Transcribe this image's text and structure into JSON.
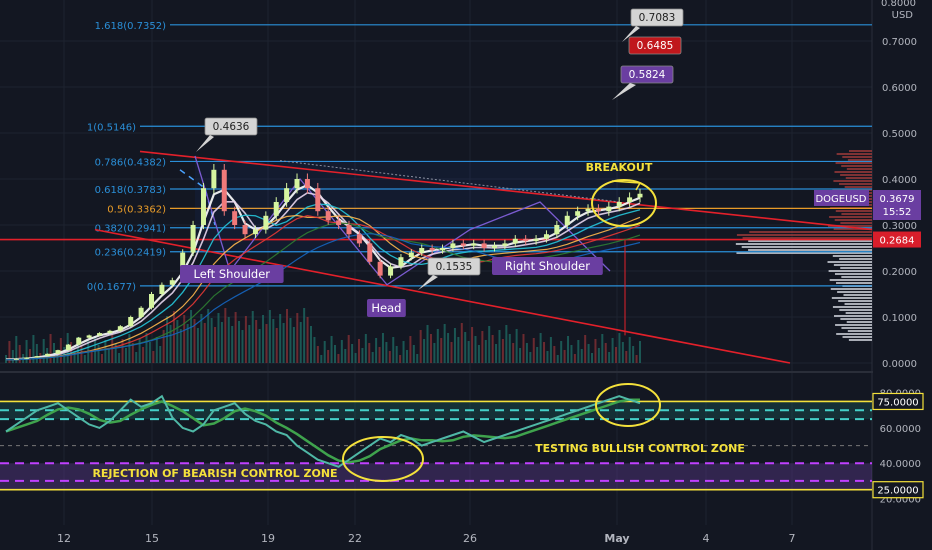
{
  "symbol": "DOGEUSD",
  "currency": "USD",
  "top_tick_partial": "0.8000",
  "price": {
    "label": "DOGEUSD",
    "value": "0.3679",
    "timer": "15:52",
    "line": "0.2684"
  },
  "colors": {
    "bg": "#131722",
    "grid": "#1e2330",
    "fib": "#2a8fd8",
    "fib_orange": "#e89b28",
    "trend": "#e3202a",
    "yellow": "#f4e13b",
    "up": "#26a69a",
    "down": "#ef5350",
    "purple": "#6a3ea1",
    "rsi": "#4fb8a6",
    "teal": "#45d0c8"
  },
  "chart_data": {
    "type": "candlestick",
    "ylim": [
      0,
      0.8
    ],
    "y_ticks": [
      "0.7000",
      "0.6000",
      "0.5000",
      "0.4000",
      "0.3000",
      "0.2000",
      "0.1000",
      "0.0000"
    ],
    "x_ticks": [
      "12",
      "15",
      "19",
      "22",
      "26",
      "May",
      "4",
      "7"
    ],
    "close": [
      0.008,
      0.009,
      0.012,
      0.015,
      0.02,
      0.028,
      0.04,
      0.055,
      0.06,
      0.065,
      0.07,
      0.08,
      0.1,
      0.12,
      0.15,
      0.17,
      0.18,
      0.24,
      0.3,
      0.38,
      0.42,
      0.33,
      0.3,
      0.28,
      0.29,
      0.32,
      0.35,
      0.38,
      0.4,
      0.38,
      0.33,
      0.31,
      0.3,
      0.28,
      0.26,
      0.22,
      0.19,
      0.21,
      0.23,
      0.24,
      0.25,
      0.245,
      0.25,
      0.26,
      0.255,
      0.26,
      0.25,
      0.255,
      0.26,
      0.27,
      0.265,
      0.27,
      0.28,
      0.3,
      0.32,
      0.33,
      0.335,
      0.33,
      0.34,
      0.35,
      0.36,
      0.3679
    ],
    "fib_levels": [
      {
        "label": "1.618(0.7352)",
        "value": 0.7352
      },
      {
        "label": "1(0.5146)",
        "value": 0.5146
      },
      {
        "label": "0.786(0.4382)",
        "value": 0.4382
      },
      {
        "label": "0.618(0.3783)",
        "value": 0.3783
      },
      {
        "label": "0.5(0.3362)",
        "value": 0.3362
      },
      {
        "label": "0.382(0.2941)",
        "value": 0.2941
      },
      {
        "label": "0.236(0.2419)",
        "value": 0.2419
      },
      {
        "label": "0(0.1677)",
        "value": 0.1677
      }
    ],
    "price_tags": [
      "0.7083",
      "0.6485",
      "0.5824",
      "0.4636",
      "0.1535"
    ],
    "annotations": [
      "BREAKOUT",
      "Left Shoulder",
      "Head",
      "Right Shoulder"
    ],
    "rsi": {
      "ylim": [
        5,
        90
      ],
      "ticks": [
        "80.0000",
        "60.0000",
        "40.0000",
        "20.0000"
      ],
      "levels": [
        "75.0000",
        "25.0000"
      ],
      "values": [
        58,
        62,
        66,
        70,
        72,
        74,
        70,
        66,
        62,
        60,
        64,
        70,
        76,
        72,
        74,
        78,
        66,
        60,
        58,
        62,
        70,
        72,
        74,
        68,
        64,
        62,
        58,
        56,
        50,
        46,
        42,
        40,
        38,
        42,
        46,
        50,
        54,
        52,
        56,
        54,
        50,
        52,
        54,
        56,
        58,
        55,
        52,
        54,
        56,
        58,
        60,
        62,
        64,
        66,
        68,
        70,
        72,
        74,
        76,
        78,
        76,
        74
      ],
      "annotations": [
        "TESTING BULLISH CONTROL ZONE",
        "REJECTION OF BEARISH CONTROL ZONE"
      ]
    }
  }
}
